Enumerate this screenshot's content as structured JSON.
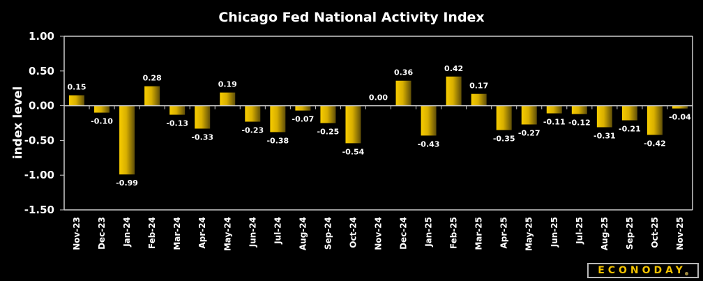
{
  "chart_data": {
    "type": "bar",
    "title": "Chicago Fed National Activity Index",
    "xlabel": "",
    "ylabel": "index level",
    "ylim": [
      -1.5,
      1.0
    ],
    "yticks": [
      1.0,
      0.5,
      0.0,
      -0.5,
      -1.0,
      -1.5
    ],
    "ytick_labels": [
      "1.00",
      "0.50",
      "0.00",
      "-0.50",
      "-1.00",
      "-1.50"
    ],
    "grid": false,
    "legend": "none",
    "categories": [
      "Nov-23",
      "Dec-23",
      "Jan-24",
      "Feb-24",
      "Mar-24",
      "Apr-24",
      "May-24",
      "Jun-24",
      "Jul-24",
      "Aug-24",
      "Sep-24",
      "Oct-24",
      "Nov-24",
      "Dec-24",
      "Jan-25",
      "Feb-25",
      "Mar-25",
      "Apr-25",
      "May-25",
      "Jun-25",
      "Jul-25",
      "Aug-25",
      "Sep-25",
      "Oct-25",
      "Nov-25"
    ],
    "values": [
      0.15,
      -0.1,
      -0.99,
      0.28,
      -0.13,
      -0.33,
      0.19,
      -0.23,
      -0.38,
      -0.07,
      -0.25,
      -0.54,
      0.0,
      0.36,
      -0.43,
      0.42,
      0.17,
      -0.35,
      -0.27,
      -0.11,
      -0.12,
      -0.31,
      -0.21,
      -0.42,
      -0.04
    ],
    "data_labels": [
      "0.15",
      "-0.10",
      "-0.99",
      "0.28",
      "-0.13",
      "-0.33",
      "0.19",
      "-0.23",
      "-0.38",
      "-0.07",
      "-0.25",
      "-0.54",
      "0.00",
      "0.36",
      "-0.43",
      "0.42",
      "0.17",
      "-0.35",
      "-0.27",
      "-0.11",
      "-0.12",
      "-0.31",
      "-0.21",
      "-0.42",
      "-0.04"
    ],
    "colors": {
      "bar_light": "#f7cc00",
      "bar_dark": "#5e4d08",
      "axis": "#cccccc",
      "background": "#000000",
      "text": "#ffffff"
    }
  },
  "branding": {
    "logo_text": "ECONODAY"
  }
}
